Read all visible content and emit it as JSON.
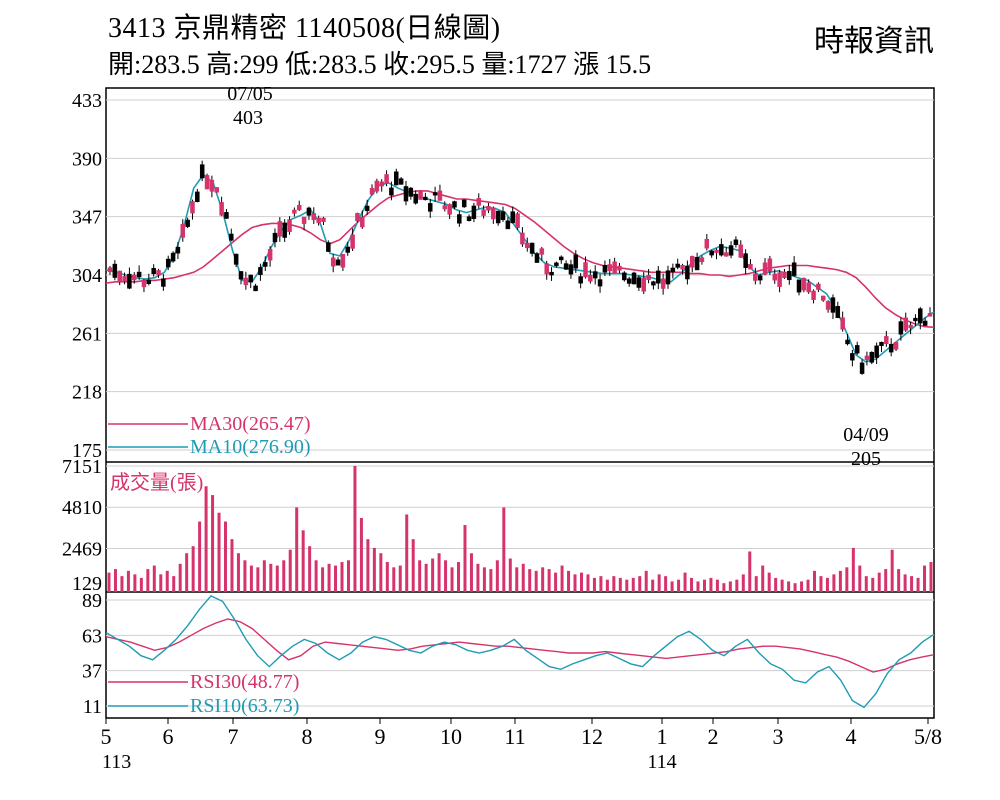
{
  "header": {
    "title": "3413  京鼎精密 1140508(日線圖)",
    "ohlc": "開:283.5 高:299 低:283.5 收:295.5 量:1727 漲 15.5",
    "source": "時報資訊"
  },
  "chart_data": [
    {
      "type": "candlestick",
      "panel": "price",
      "yticks": [
        433,
        390,
        347,
        304,
        261,
        218,
        175
      ],
      "ylim": [
        175,
        433
      ],
      "grid": true,
      "legend": [
        {
          "label": "MA30(265.47)",
          "color": "#d6336c"
        },
        {
          "label": "MA10(276.90)",
          "color": "#1f9bb5"
        }
      ],
      "annotations": [
        {
          "date": "07/05",
          "value": "403"
        },
        {
          "date": "04/09",
          "value": "205"
        }
      ],
      "series": [
        {
          "name": "MA30",
          "color": "#d6336c",
          "values": [
            298,
            299,
            299,
            299,
            300,
            300,
            301,
            302,
            304,
            306,
            310,
            316,
            322,
            328,
            334,
            339,
            341,
            342,
            342,
            341,
            339,
            335,
            330,
            327,
            330,
            337,
            344,
            350,
            356,
            361,
            363,
            365,
            366,
            366,
            364,
            362,
            360,
            360,
            359,
            358,
            357,
            356,
            353,
            348,
            343,
            337,
            331,
            325,
            320,
            316,
            313,
            311,
            310,
            309,
            308,
            307,
            306,
            306,
            306,
            306,
            305,
            305,
            304,
            304,
            303,
            304,
            305,
            307,
            309,
            310,
            311,
            311,
            311,
            310,
            309,
            308,
            306,
            302,
            295,
            287,
            280,
            275,
            271,
            268,
            266,
            265.47
          ]
        },
        {
          "name": "MA10",
          "color": "#1f9bb5",
          "values": [
            308,
            306,
            304,
            302,
            301,
            302,
            306,
            318,
            340,
            368,
            378,
            372,
            350,
            322,
            300,
            299,
            310,
            325,
            337,
            345,
            348,
            352,
            342,
            320,
            318,
            330,
            346,
            360,
            370,
            372,
            368,
            365,
            362,
            360,
            358,
            356,
            352,
            350,
            352,
            354,
            353,
            350,
            340,
            330,
            320,
            313,
            310,
            309,
            308,
            307,
            306,
            305,
            305,
            305,
            304,
            303,
            302,
            300,
            299,
            305,
            312,
            318,
            322,
            325,
            324,
            322,
            310,
            304,
            306,
            307,
            305,
            302,
            300,
            295,
            290,
            278,
            262,
            245,
            240,
            242,
            248,
            254,
            260,
            266,
            272,
            276.9
          ]
        }
      ]
    },
    {
      "type": "bar",
      "panel": "volume",
      "title": "成交量(張)",
      "yticks": [
        7151,
        4810,
        2469,
        129
      ],
      "ylim": [
        0,
        7151
      ],
      "values": [
        1100,
        1300,
        900,
        1200,
        1000,
        800,
        1300,
        1500,
        1000,
        1200,
        900,
        1600,
        2200,
        2600,
        4000,
        6000,
        5500,
        4500,
        4000,
        3000,
        2200,
        1800,
        1500,
        1400,
        1800,
        1600,
        1500,
        1800,
        2400,
        4800,
        3500,
        2600,
        1800,
        1400,
        1600,
        1500,
        1700,
        1800,
        7151,
        4200,
        3000,
        2500,
        2200,
        1700,
        1400,
        1500,
        4400,
        3000,
        1800,
        1600,
        1900,
        2200,
        1800,
        1400,
        1700,
        3800,
        2200,
        1600,
        1400,
        1300,
        1800,
        4800,
        1900,
        1400,
        1600,
        1300,
        1200,
        1400,
        1300,
        1100,
        1500,
        1200,
        1000,
        1100,
        1000,
        800,
        900,
        700,
        900,
        800,
        700,
        800,
        900,
        1200,
        700,
        1000,
        900,
        600,
        700,
        1100,
        800,
        600,
        700,
        800,
        700,
        500,
        600,
        700,
        1000,
        2300,
        900,
        1500,
        1100,
        800,
        700,
        600,
        500,
        600,
        700,
        1200,
        900,
        800,
        1000,
        1200,
        1400,
        2500,
        1500,
        900,
        800,
        1100,
        1300,
        2400,
        1300,
        1000,
        900,
        800,
        1500,
        1700
      ]
    },
    {
      "type": "line",
      "panel": "rsi",
      "yticks": [
        89,
        63,
        37,
        11
      ],
      "ylim": [
        0,
        100
      ],
      "legend": [
        {
          "label": "RSI30(48.77)",
          "color": "#d6336c"
        },
        {
          "label": "RSI10(63.73)",
          "color": "#1f9bb5"
        }
      ],
      "series": [
        {
          "name": "RSI30",
          "color": "#d6336c",
          "values": [
            62,
            60,
            58,
            55,
            52,
            54,
            58,
            63,
            68,
            72,
            75,
            73,
            68,
            60,
            52,
            45,
            48,
            55,
            58,
            57,
            56,
            55,
            54,
            53,
            52,
            53,
            55,
            56,
            57,
            58,
            57,
            56,
            55,
            55,
            54,
            53,
            52,
            51,
            50,
            50,
            50,
            51,
            50,
            49,
            48,
            47,
            46,
            47,
            48,
            49,
            50,
            51,
            53,
            54,
            55,
            55,
            54,
            53,
            51,
            49,
            47,
            44,
            40,
            36,
            38,
            42,
            45,
            47,
            48.77
          ]
        },
        {
          "name": "RSI10",
          "color": "#1f9bb5",
          "values": [
            65,
            60,
            55,
            48,
            45,
            52,
            60,
            70,
            82,
            92,
            88,
            75,
            60,
            48,
            40,
            48,
            55,
            60,
            57,
            50,
            45,
            50,
            58,
            62,
            60,
            56,
            52,
            50,
            55,
            58,
            56,
            52,
            50,
            52,
            55,
            60,
            52,
            46,
            40,
            38,
            42,
            45,
            48,
            50,
            46,
            42,
            40,
            48,
            55,
            62,
            66,
            60,
            52,
            48,
            55,
            60,
            50,
            42,
            38,
            30,
            28,
            36,
            40,
            30,
            15,
            10,
            20,
            35,
            45,
            50,
            58,
            63.73
          ]
        }
      ]
    }
  ],
  "xaxis": {
    "ticks": [
      "5",
      "6",
      "7",
      "8",
      "9",
      "10",
      "11",
      "12",
      "1",
      "2",
      "3",
      "4",
      "5/8"
    ],
    "year_labels": [
      "113",
      "114"
    ]
  }
}
